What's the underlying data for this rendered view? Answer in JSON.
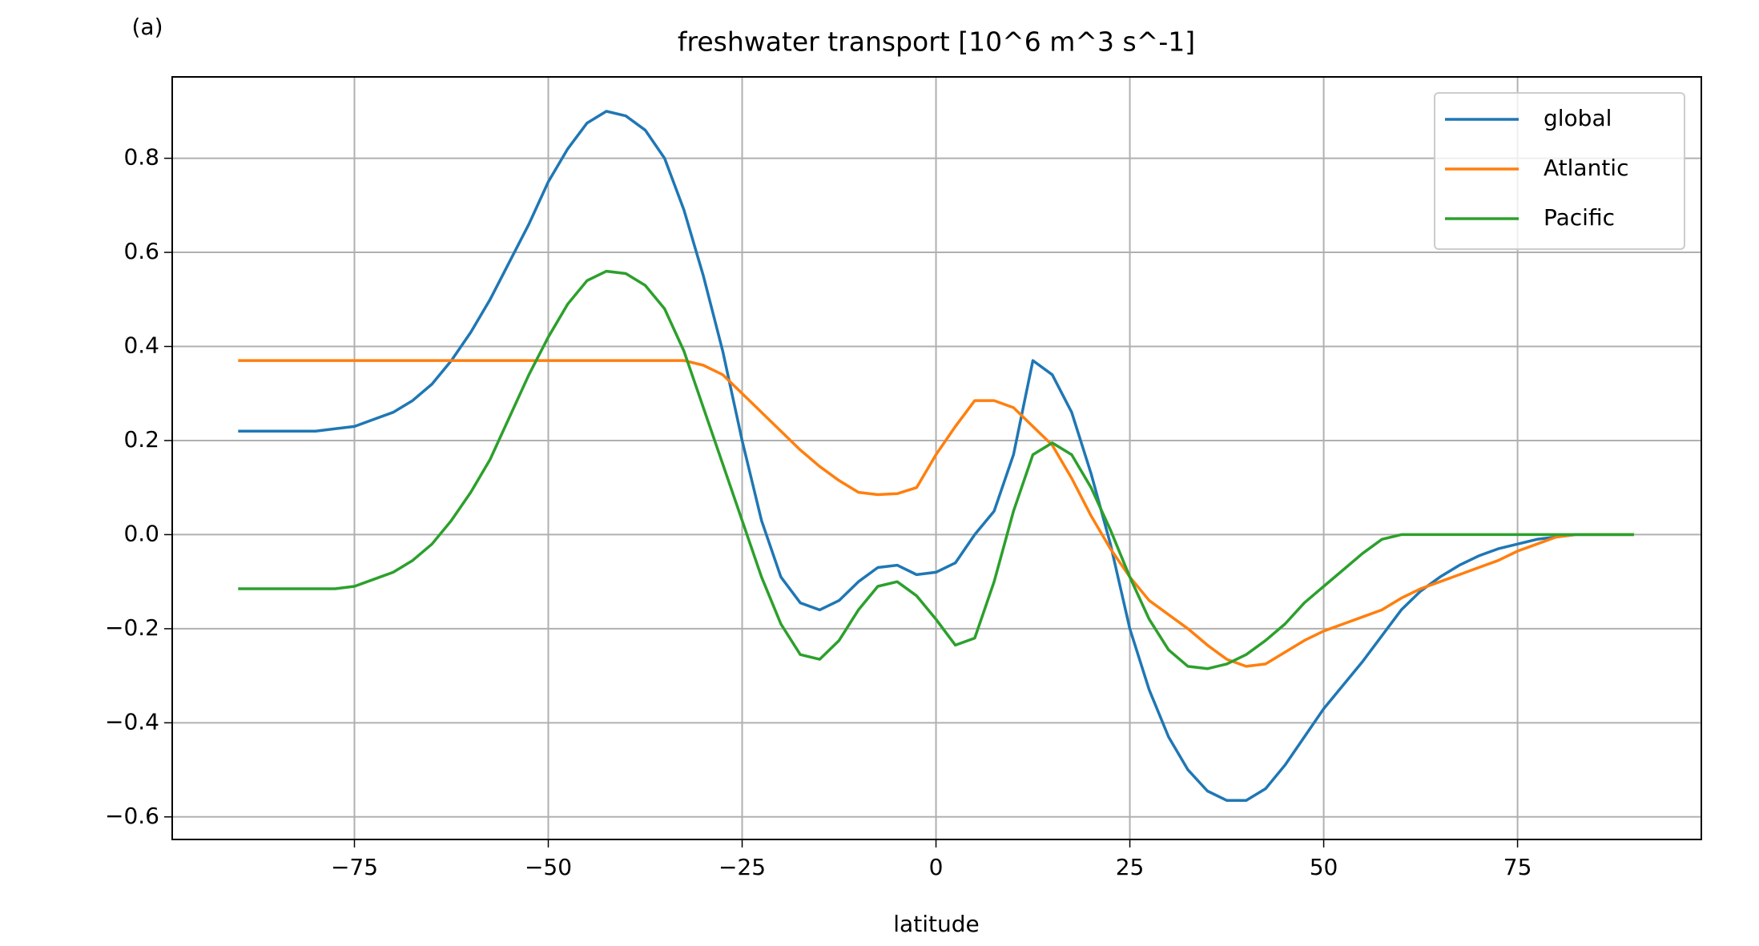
{
  "chart_data": {
    "type": "line",
    "title": "freshwater transport [10^6 m^3 s^-1]",
    "panel_label": "(a)",
    "x_label": "latitude",
    "x": [
      -90,
      -87.5,
      -85,
      -82.5,
      -80,
      -77.5,
      -75,
      -72.5,
      -70,
      -67.5,
      -65,
      -62.5,
      -60,
      -57.5,
      -55,
      -52.5,
      -50,
      -47.5,
      -45,
      -42.5,
      -40,
      -37.5,
      -35,
      -32.5,
      -30,
      -27.5,
      -25,
      -22.5,
      -20,
      -17.5,
      -15,
      -12.5,
      -10,
      -7.5,
      -5,
      -2.5,
      0,
      2.5,
      5,
      7.5,
      10,
      12.5,
      15,
      17.5,
      20,
      22.5,
      25,
      27.5,
      30,
      32.5,
      35,
      37.5,
      40,
      42.5,
      45,
      47.5,
      50,
      52.5,
      55,
      57.5,
      60,
      62.5,
      65,
      67.5,
      70,
      72.5,
      75,
      77.5,
      80,
      82.5,
      85,
      87.5,
      90
    ],
    "series": [
      {
        "name": "global",
        "color": "#1f77b4",
        "values": [
          0.22,
          0.22,
          0.22,
          0.22,
          0.22,
          0.225,
          0.23,
          0.245,
          0.26,
          0.285,
          0.32,
          0.37,
          0.43,
          0.5,
          0.58,
          0.66,
          0.75,
          0.82,
          0.875,
          0.9,
          0.89,
          0.86,
          0.8,
          0.69,
          0.55,
          0.39,
          0.2,
          0.03,
          -0.09,
          -0.145,
          -0.16,
          -0.14,
          -0.1,
          -0.07,
          -0.065,
          -0.085,
          -0.08,
          -0.06,
          0,
          0.05,
          0.17,
          0.37,
          0.34,
          0.26,
          0.13,
          -0.02,
          -0.2,
          -0.33,
          -0.43,
          -0.5,
          -0.545,
          -0.565,
          -0.565,
          -0.54,
          -0.49,
          -0.43,
          -0.37,
          -0.32,
          -0.27,
          -0.215,
          -0.16,
          -0.12,
          -0.09,
          -0.065,
          -0.045,
          -0.03,
          -0.02,
          -0.01,
          -0.005,
          0,
          0,
          0,
          0
        ]
      },
      {
        "name": "Atlantic",
        "color": "#ff7f0e",
        "values": [
          0.37,
          0.37,
          0.37,
          0.37,
          0.37,
          0.37,
          0.37,
          0.37,
          0.37,
          0.37,
          0.37,
          0.37,
          0.37,
          0.37,
          0.37,
          0.37,
          0.37,
          0.37,
          0.37,
          0.37,
          0.37,
          0.37,
          0.37,
          0.37,
          0.36,
          0.34,
          0.3,
          0.26,
          0.22,
          0.18,
          0.145,
          0.115,
          0.09,
          0.085,
          0.087,
          0.1,
          0.17,
          0.23,
          0.285,
          0.285,
          0.27,
          0.23,
          0.19,
          0.12,
          0.04,
          -0.03,
          -0.09,
          -0.14,
          -0.17,
          -0.2,
          -0.235,
          -0.265,
          -0.28,
          -0.275,
          -0.25,
          -0.225,
          -0.205,
          -0.19,
          -0.175,
          -0.16,
          -0.135,
          -0.115,
          -0.1,
          -0.085,
          -0.07,
          -0.055,
          -0.035,
          -0.02,
          -0.005,
          0,
          0,
          0,
          0
        ]
      },
      {
        "name": "Pacific",
        "color": "#2ca02c",
        "values": [
          -0.115,
          -0.115,
          -0.115,
          -0.115,
          -0.115,
          -0.115,
          -0.11,
          -0.095,
          -0.08,
          -0.055,
          -0.02,
          0.03,
          0.09,
          0.16,
          0.25,
          0.34,
          0.42,
          0.49,
          0.54,
          0.56,
          0.555,
          0.53,
          0.48,
          0.39,
          0.27,
          0.15,
          0.03,
          -0.09,
          -0.19,
          -0.255,
          -0.265,
          -0.225,
          -0.16,
          -0.11,
          -0.1,
          -0.13,
          -0.18,
          -0.235,
          -0.22,
          -0.1,
          0.05,
          0.17,
          0.195,
          0.17,
          0.1,
          0.01,
          -0.09,
          -0.18,
          -0.245,
          -0.28,
          -0.285,
          -0.275,
          -0.255,
          -0.225,
          -0.19,
          -0.145,
          -0.11,
          -0.075,
          -0.04,
          -0.01,
          0,
          0,
          0,
          0,
          0,
          0,
          0,
          0,
          0,
          0,
          0,
          0,
          0
        ]
      }
    ],
    "xlim": [
      -98.5,
      98.7
    ],
    "ylim": [
      -0.648,
      0.973
    ],
    "xticks": [
      {
        "value": -75,
        "label": "−75"
      },
      {
        "value": -50,
        "label": "−50"
      },
      {
        "value": -25,
        "label": "−25"
      },
      0,
      25,
      50,
      75
    ],
    "yticks": [
      {
        "value": -0.6,
        "label": "−0.6"
      },
      {
        "value": -0.4,
        "label": "−0.4"
      },
      {
        "value": -0.2,
        "label": "−0.2"
      },
      {
        "value": 0,
        "label": "0.0"
      },
      0.2,
      0.4,
      0.6,
      0.8
    ],
    "grid": true,
    "legend": "upper right"
  }
}
